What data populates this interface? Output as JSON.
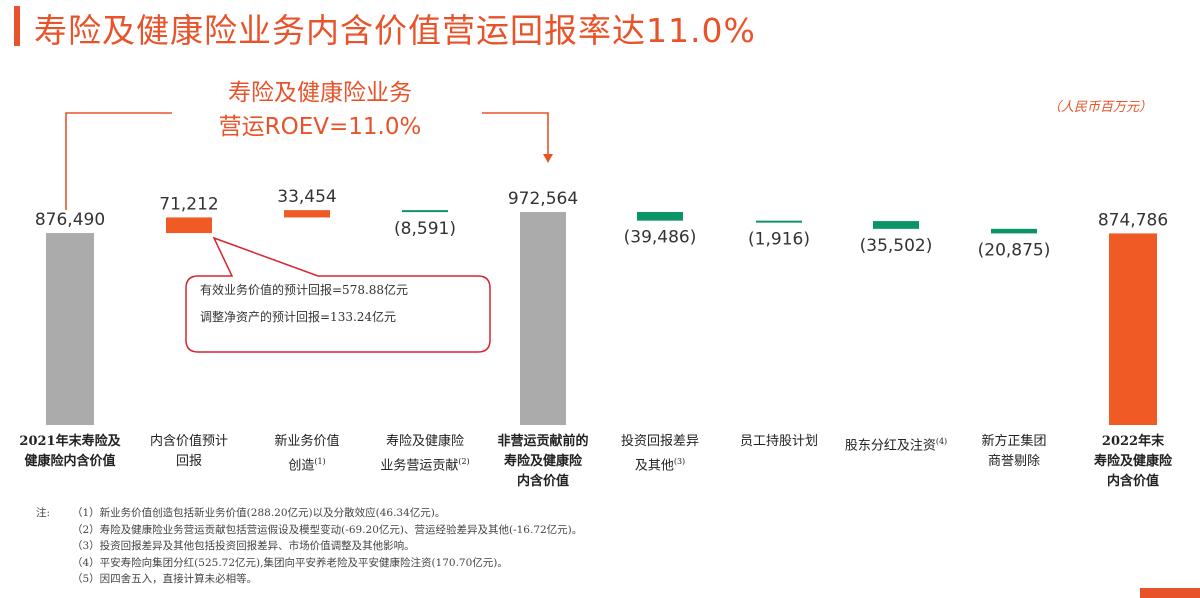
{
  "title": "寿险及健康险业务内含价值营运回报率达11.0%",
  "unit": "（人民币百万元）",
  "roev_box": {
    "line1": "寿险及健康险业务",
    "line2": "营运ROEV=11.0%"
  },
  "callout": {
    "line1": "有效业务价值的预计回报=578.88亿元",
    "line2": "调整净资产的预计回报=133.24亿元"
  },
  "colors": {
    "accent": "#e8532a",
    "total_gray": "#ababab",
    "decrease_green": "#0b9464",
    "increase_orange": "#f05a24"
  },
  "chart_data": {
    "type": "waterfall",
    "categories": [
      {
        "label": "2021年末寿险及健康险内含价值",
        "lines": [
          "2021年末寿险及",
          "健康险内含价值"
        ],
        "note": "",
        "bold": true
      },
      {
        "label": "内含价值预计回报",
        "lines": [
          "内含价值预计",
          "回报"
        ],
        "note": "",
        "bold": false
      },
      {
        "label": "新业务价值创造",
        "lines": [
          "新业务价值",
          "创造"
        ],
        "note": "(1)",
        "bold": false
      },
      {
        "label": "寿险及健康险业务营运贡献",
        "lines": [
          "寿险及健康险",
          "业务营运贡献"
        ],
        "note": "(2)",
        "bold": false
      },
      {
        "label": "非营运贡献前的寿险及健康险内含价值",
        "lines": [
          "非营运贡献前的",
          "寿险及健康险",
          "内含价值"
        ],
        "note": "",
        "bold": true
      },
      {
        "label": "投资回报差异及其他",
        "lines": [
          "投资回报差异",
          "及其他"
        ],
        "note": "(3)",
        "bold": false
      },
      {
        "label": "员工持股计划",
        "lines": [
          "员工持股计划"
        ],
        "note": "",
        "bold": false
      },
      {
        "label": "股东分红及注资",
        "lines": [
          "股东分红及注资"
        ],
        "note": "(4)",
        "bold": false
      },
      {
        "label": "新方正集团商誉剔除",
        "lines": [
          "新方正集团",
          "商誉剔除"
        ],
        "note": "",
        "bold": false
      },
      {
        "label": "2022年末寿险及健康险内含价值",
        "lines": [
          "2022年末",
          "寿险及健康险",
          "内含价值"
        ],
        "note": "",
        "bold": true
      }
    ],
    "values": [
      876490,
      71212,
      33454,
      -8591,
      972564,
      -39486,
      -1916,
      -35502,
      -20875,
      874786
    ],
    "value_labels": [
      "876,490",
      "71,212",
      "33,454",
      "(8,591)",
      "972,564",
      "(39,486)",
      "(1,916)",
      "(35,502)",
      "(20,875)",
      "874,786"
    ],
    "kinds": [
      "total",
      "increase",
      "increase",
      "decrease",
      "total",
      "decrease",
      "decrease",
      "decrease",
      "decrease",
      "total"
    ]
  },
  "notes": {
    "label": "注:",
    "items": [
      "（1）新业务价值创造包括新业务价值(288.20亿元)以及分散效应(46.34亿元)。",
      "（2）寿险及健康险业务营运贡献包括营运假设及模型变动(-69.20亿元)、营运经验差异及其他(-16.72亿元)。",
      "（3）投资回报差异及其他包括投资回报差异、市场价值调整及其他影响。",
      "（4）平安寿险向集团分红(525.72亿元),集团向平安养老险及平安健康险注资(170.70亿元)。",
      "（5）因四舍五入，直接计算未必相等。"
    ]
  }
}
